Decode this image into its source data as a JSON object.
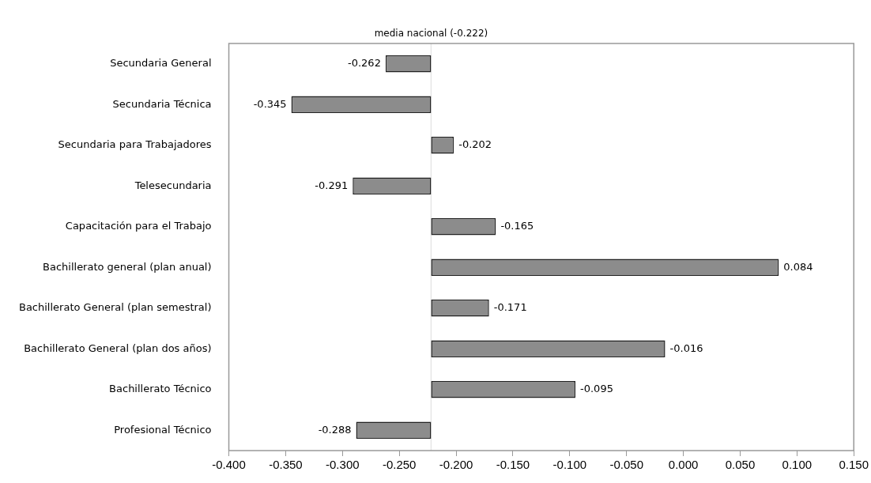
{
  "chart_data": {
    "type": "bar",
    "orientation": "horizontal",
    "categories": [
      "Secundaria General",
      "Secundaria Técnica",
      "Secundaria para Trabajadores",
      "Telesecundaria",
      "Capacitación para el Trabajo",
      "Bachillerato general (plan anual)",
      "Bachillerato General (plan semestral)",
      "Bachillerato General (plan dos años)",
      "Bachillerato Técnico",
      "Profesional Técnico"
    ],
    "base": [
      -0.222,
      -0.222,
      -0.222,
      -0.222,
      -0.222,
      -0.222,
      -0.222,
      -0.222,
      -0.222,
      -0.222
    ],
    "values": [
      -0.04,
      -0.123,
      0.02,
      -0.069,
      0.057,
      0.306,
      0.051,
      0.206,
      0.127,
      -0.066
    ],
    "value_labels": [
      "-0.262",
      "-0.345",
      "-0.202",
      "-0.291",
      "-0.165",
      "0.084",
      "-0.171",
      "-0.016",
      "-0.095",
      "-0.288"
    ],
    "color": "#8c8c8c",
    "xlim": [
      -0.4,
      0.15
    ],
    "xticks": [
      {
        "value": -0.4,
        "label": "-0.400"
      },
      {
        "value": -0.35,
        "label": "-0.350"
      },
      {
        "value": -0.3,
        "label": "-0.300"
      },
      {
        "value": -0.25,
        "label": "-0.250"
      },
      {
        "value": -0.2,
        "label": "-0.200"
      },
      {
        "value": -0.15,
        "label": "-0.150"
      },
      {
        "value": -0.1,
        "label": "-0.100"
      },
      {
        "value": -0.05,
        "label": "-0.050"
      },
      {
        "value": 0,
        "label": "0.000"
      },
      {
        "value": 0.05,
        "label": "0.050"
      },
      {
        "value": 0.1,
        "label": "0.100"
      },
      {
        "value": 0.15,
        "label": "0.150"
      }
    ],
    "ref_lines": [
      {
        "axis": "x",
        "value": -0.222,
        "label": "media nacional (-0.222)",
        "color": "#e6e6e6"
      }
    ],
    "grid": false,
    "legend": false
  }
}
